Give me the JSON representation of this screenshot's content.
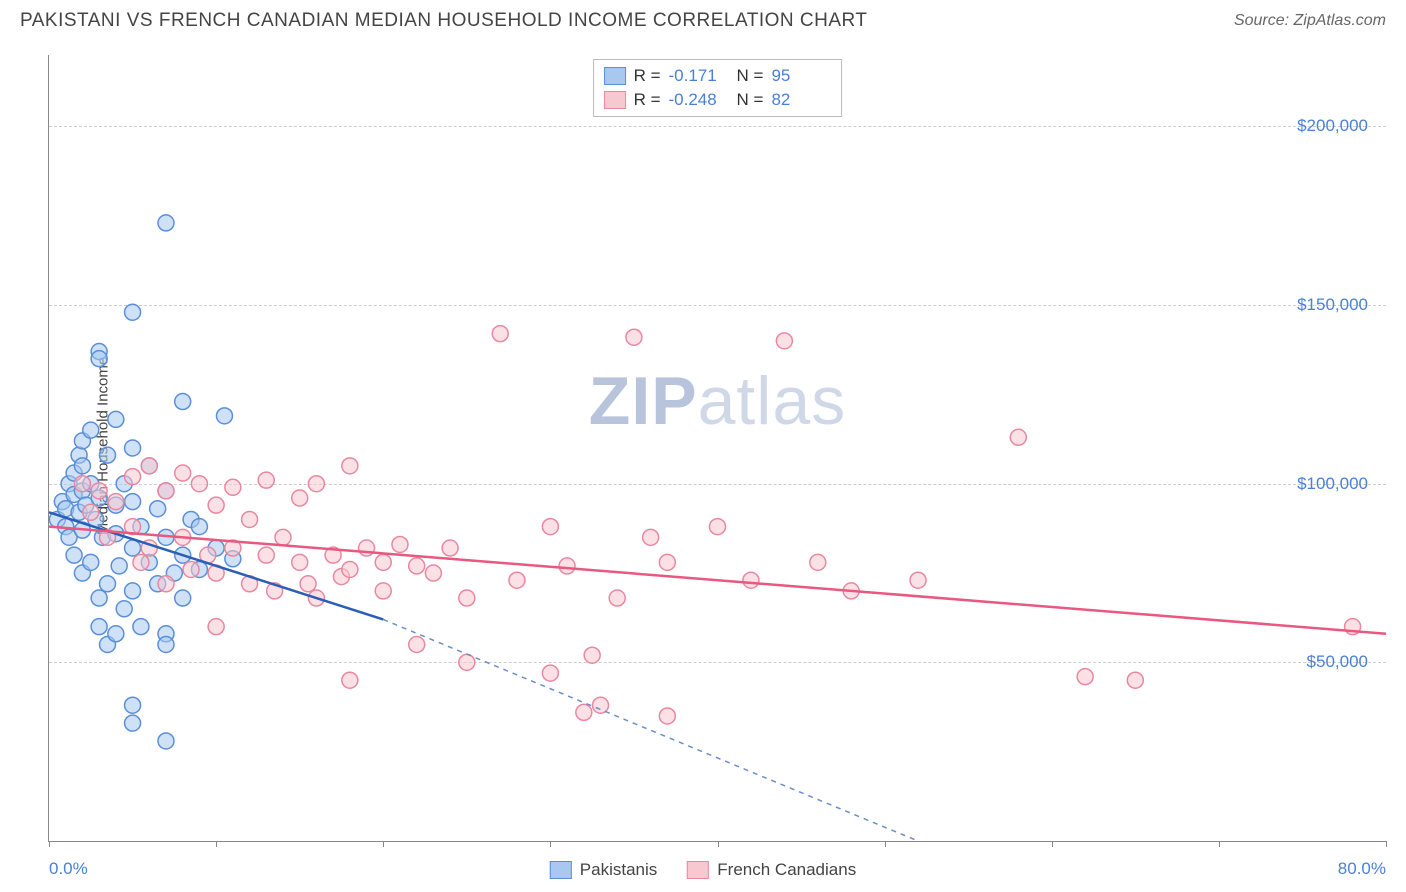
{
  "title": "PAKISTANI VS FRENCH CANADIAN MEDIAN HOUSEHOLD INCOME CORRELATION CHART",
  "source": "Source: ZipAtlas.com",
  "watermark_bold": "ZIP",
  "watermark_rest": "atlas",
  "chart": {
    "type": "scatter",
    "ylabel": "Median Household Income",
    "xlim": [
      0,
      80
    ],
    "ylim": [
      0,
      220000
    ],
    "x_edge_labels": [
      "0.0%",
      "80.0%"
    ],
    "yticks": [
      50000,
      100000,
      150000,
      200000
    ],
    "ytick_labels": [
      "$50,000",
      "$100,000",
      "$150,000",
      "$200,000"
    ],
    "xtick_positions": [
      0,
      10,
      20,
      30,
      40,
      50,
      60,
      70,
      80
    ],
    "grid_color": "#cccccc",
    "background_color": "#ffffff",
    "axis_color": "#888888",
    "marker_radius": 8,
    "marker_stroke_width": 1.5,
    "trendline_width": 2.5,
    "series": [
      {
        "name": "Pakistanis",
        "fill_color": "#a8c8f0",
        "stroke_color": "#5a8fd8",
        "R": "-0.171",
        "N": "95",
        "trendline": {
          "x1": 0,
          "y1": 92000,
          "x2": 20,
          "y2": 62000,
          "color": "#2a5fb8"
        },
        "trendline_ext": {
          "x1": 20,
          "y1": 62000,
          "x2": 52,
          "y2": 0,
          "color": "#6a8fc8",
          "dash": "5,5"
        },
        "points": [
          [
            0.5,
            90000
          ],
          [
            0.8,
            95000
          ],
          [
            1,
            93000
          ],
          [
            1,
            88000
          ],
          [
            1.2,
            100000
          ],
          [
            1.2,
            85000
          ],
          [
            1.5,
            97000
          ],
          [
            1.5,
            103000
          ],
          [
            1.5,
            80000
          ],
          [
            1.8,
            108000
          ],
          [
            1.8,
            92000
          ],
          [
            2,
            112000
          ],
          [
            2,
            105000
          ],
          [
            2,
            98000
          ],
          [
            2,
            87000
          ],
          [
            2,
            75000
          ],
          [
            2.2,
            94000
          ],
          [
            2.5,
            100000
          ],
          [
            2.5,
            115000
          ],
          [
            2.5,
            78000
          ],
          [
            2.8,
            90000
          ],
          [
            3,
            137000
          ],
          [
            3,
            135000
          ],
          [
            3,
            96000
          ],
          [
            3,
            68000
          ],
          [
            3,
            60000
          ],
          [
            3.2,
            85000
          ],
          [
            3.5,
            108000
          ],
          [
            3.5,
            72000
          ],
          [
            3.5,
            55000
          ],
          [
            4,
            118000
          ],
          [
            4,
            94000
          ],
          [
            4,
            86000
          ],
          [
            4,
            58000
          ],
          [
            4.2,
            77000
          ],
          [
            4.5,
            100000
          ],
          [
            4.5,
            65000
          ],
          [
            5,
            148000
          ],
          [
            5,
            110000
          ],
          [
            5,
            95000
          ],
          [
            5,
            82000
          ],
          [
            5,
            70000
          ],
          [
            5,
            38000
          ],
          [
            5,
            33000
          ],
          [
            5.5,
            88000
          ],
          [
            5.5,
            60000
          ],
          [
            6,
            105000
          ],
          [
            6,
            78000
          ],
          [
            6.5,
            93000
          ],
          [
            6.5,
            72000
          ],
          [
            7,
            173000
          ],
          [
            7,
            98000
          ],
          [
            7,
            85000
          ],
          [
            7,
            58000
          ],
          [
            7,
            55000
          ],
          [
            7,
            28000
          ],
          [
            7.5,
            75000
          ],
          [
            8,
            123000
          ],
          [
            8,
            80000
          ],
          [
            8,
            68000
          ],
          [
            8.5,
            90000
          ],
          [
            9,
            88000
          ],
          [
            9,
            76000
          ],
          [
            10,
            82000
          ],
          [
            10.5,
            119000
          ],
          [
            11,
            79000
          ]
        ]
      },
      {
        "name": "French Canadians",
        "fill_color": "#f8c8d0",
        "stroke_color": "#e888a0",
        "R": "-0.248",
        "N": "82",
        "trendline": {
          "x1": 0,
          "y1": 88000,
          "x2": 80,
          "y2": 58000,
          "color": "#e85880"
        },
        "points": [
          [
            2,
            100000
          ],
          [
            2.5,
            92000
          ],
          [
            3,
            98000
          ],
          [
            3.5,
            85000
          ],
          [
            4,
            95000
          ],
          [
            5,
            102000
          ],
          [
            5,
            88000
          ],
          [
            5.5,
            78000
          ],
          [
            6,
            105000
          ],
          [
            6,
            82000
          ],
          [
            7,
            98000
          ],
          [
            7,
            72000
          ],
          [
            8,
            103000
          ],
          [
            8,
            85000
          ],
          [
            8.5,
            76000
          ],
          [
            9,
            100000
          ],
          [
            9.5,
            80000
          ],
          [
            10,
            94000
          ],
          [
            10,
            75000
          ],
          [
            10,
            60000
          ],
          [
            11,
            99000
          ],
          [
            11,
            82000
          ],
          [
            12,
            90000
          ],
          [
            12,
            72000
          ],
          [
            13,
            101000
          ],
          [
            13,
            80000
          ],
          [
            13.5,
            70000
          ],
          [
            14,
            85000
          ],
          [
            15,
            96000
          ],
          [
            15,
            78000
          ],
          [
            15.5,
            72000
          ],
          [
            16,
            100000
          ],
          [
            16,
            68000
          ],
          [
            17,
            80000
          ],
          [
            17.5,
            74000
          ],
          [
            18,
            105000
          ],
          [
            18,
            76000
          ],
          [
            18,
            45000
          ],
          [
            19,
            82000
          ],
          [
            20,
            78000
          ],
          [
            20,
            70000
          ],
          [
            21,
            83000
          ],
          [
            22,
            77000
          ],
          [
            22,
            55000
          ],
          [
            23,
            75000
          ],
          [
            24,
            82000
          ],
          [
            25,
            68000
          ],
          [
            25,
            50000
          ],
          [
            27,
            142000
          ],
          [
            28,
            73000
          ],
          [
            30,
            88000
          ],
          [
            30,
            47000
          ],
          [
            31,
            77000
          ],
          [
            32,
            36000
          ],
          [
            32.5,
            52000
          ],
          [
            33,
            38000
          ],
          [
            34,
            68000
          ],
          [
            35,
            141000
          ],
          [
            36,
            85000
          ],
          [
            37,
            78000
          ],
          [
            37,
            35000
          ],
          [
            40,
            88000
          ],
          [
            42,
            73000
          ],
          [
            44,
            140000
          ],
          [
            46,
            78000
          ],
          [
            48,
            70000
          ],
          [
            52,
            73000
          ],
          [
            58,
            113000
          ],
          [
            62,
            46000
          ],
          [
            65,
            45000
          ],
          [
            78,
            60000
          ]
        ]
      }
    ]
  },
  "legend_top_label_R": "R =",
  "legend_top_label_N": "N ="
}
